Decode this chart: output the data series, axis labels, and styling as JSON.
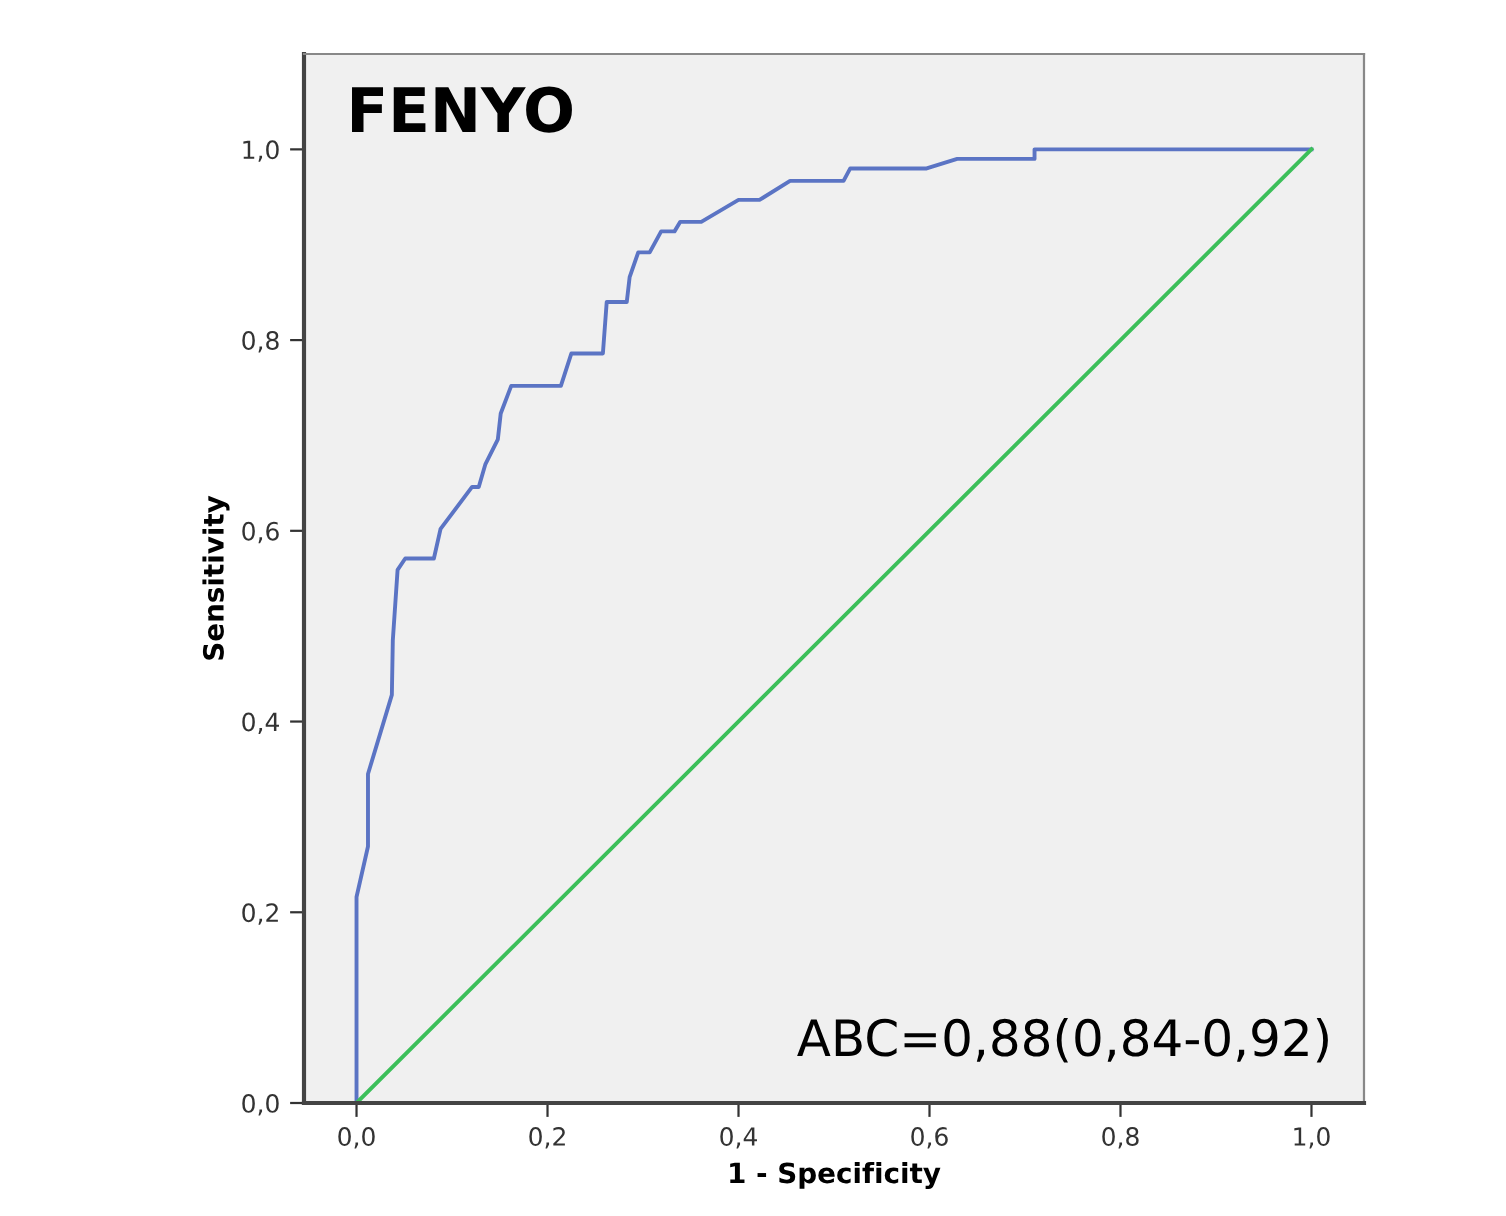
{
  "chart_data": {
    "type": "line",
    "title": "FENYO",
    "xlabel": "1 - Specificity",
    "ylabel": "Sensitivity",
    "annotations": [
      "ABC=0,88(0,84-0,92)"
    ],
    "xlim": [
      -0.055,
      1.055
    ],
    "ylim": [
      0,
      1.1
    ],
    "xticks": [
      {
        "value": 0,
        "label": "0,0"
      },
      {
        "value": 0.2,
        "label": "0,2"
      },
      {
        "value": 0.4,
        "label": "0,4"
      },
      {
        "value": 0.6,
        "label": "0,6"
      },
      {
        "value": 0.8,
        "label": "0,8"
      },
      {
        "value": 1,
        "label": "1,0"
      }
    ],
    "yticks": [
      {
        "value": 0,
        "label": "0,0"
      },
      {
        "value": 0.2,
        "label": "0,2"
      },
      {
        "value": 0.4,
        "label": "0,4"
      },
      {
        "value": 0.6,
        "label": "0,6"
      },
      {
        "value": 0.8,
        "label": "0,8"
      },
      {
        "value": 1,
        "label": "1,0"
      }
    ],
    "grid": false,
    "legend": false,
    "marker": "none",
    "line_style": "solid",
    "series": [
      {
        "color": "#5b74c4",
        "x": [
          0,
          0,
          0.012,
          0.012,
          0.037,
          0.038,
          0.043,
          0.051,
          0.081,
          0.088,
          0.121,
          0.128,
          0.135,
          0.148,
          0.151,
          0.162,
          0.214,
          0.225,
          0.258,
          0.262,
          0.283,
          0.286,
          0.295,
          0.307,
          0.319,
          0.333,
          0.339,
          0.361,
          0.4,
          0.422,
          0.454,
          0.51,
          0.517,
          0.597,
          0.629,
          0.71,
          0.71,
          1.0
        ],
        "values": [
          0,
          0.216,
          0.269,
          0.345,
          0.428,
          0.485,
          0.559,
          0.571,
          0.571,
          0.602,
          0.646,
          0.646,
          0.67,
          0.696,
          0.723,
          0.752,
          0.752,
          0.786,
          0.786,
          0.84,
          0.84,
          0.866,
          0.892,
          0.892,
          0.914,
          0.914,
          0.924,
          0.924,
          0.947,
          0.947,
          0.967,
          0.967,
          0.98,
          0.98,
          0.99,
          0.99,
          1.0,
          1.0
        ]
      },
      {
        "color": "#3cbf5a",
        "x": [
          0,
          1
        ],
        "values": [
          0,
          1
        ]
      }
    ]
  }
}
